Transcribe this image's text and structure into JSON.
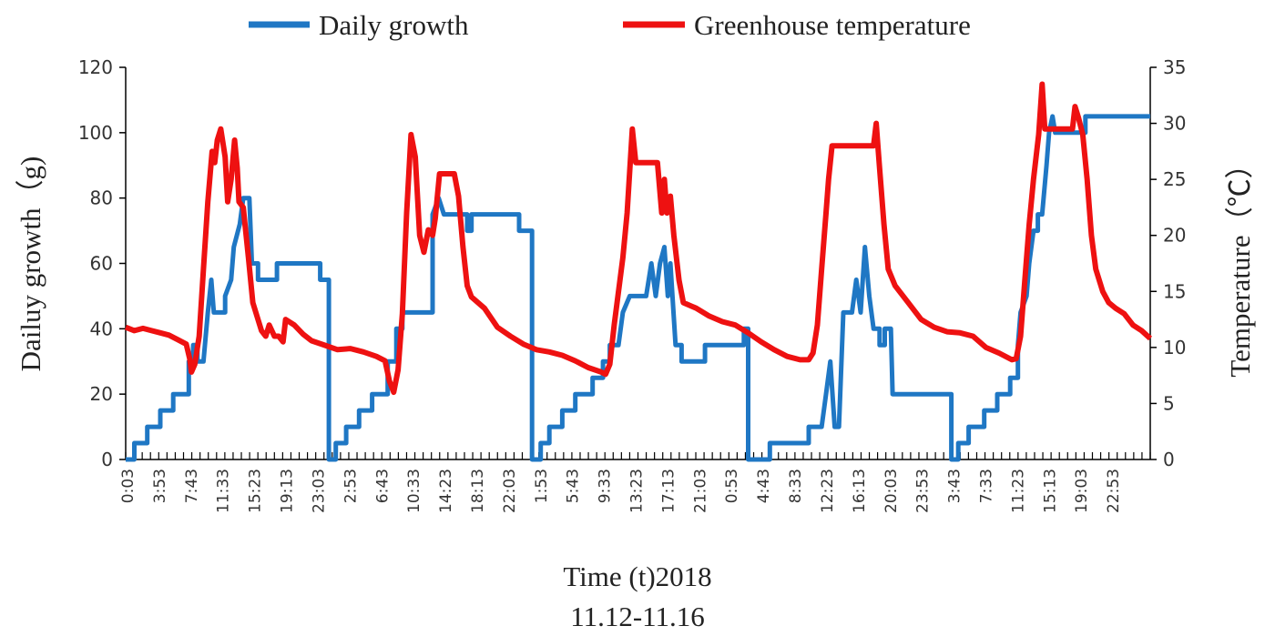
{
  "chart_data": {
    "type": "line",
    "title": "",
    "xlabel": "Time (t)2018",
    "xlabel_line2": "11.12-11.16",
    "ylabel": "Dailuy growth（g)",
    "y2label": "Temperature（℃）",
    "ylim": [
      0,
      120
    ],
    "y2lim": [
      0,
      35
    ],
    "yticks": [
      "0",
      "20",
      "40",
      "60",
      "80",
      "100",
      "120"
    ],
    "y2ticks": [
      "0",
      "5",
      "10",
      "15",
      "20",
      "25",
      "30",
      "35"
    ],
    "x_tick_labels": [
      "0:03",
      "3:53",
      "7:43",
      "11:33",
      "15:23",
      "19:13",
      "23:03",
      "2:53",
      "6:43",
      "10:33",
      "14:23",
      "18:13",
      "22:03",
      "1:53",
      "5:43",
      "9:33",
      "13:23",
      "17:13",
      "21:03",
      "0:53",
      "4:43",
      "8:33",
      "12:23",
      "16:13",
      "20:03",
      "23:53",
      "3:43",
      "7:33",
      "11:23",
      "15:13",
      "19:03",
      "22:53"
    ],
    "x_unit": "hours since 11.12 0:03",
    "x_range": [
      0,
      118.5
    ],
    "legend_position": "top",
    "grid": false,
    "series": [
      {
        "name": "Daily growth",
        "axis": "left",
        "color": "#1f77c4",
        "points": [
          [
            0,
            0
          ],
          [
            1,
            0
          ],
          [
            1,
            5
          ],
          [
            2.5,
            5
          ],
          [
            2.5,
            10
          ],
          [
            4,
            10
          ],
          [
            4,
            15
          ],
          [
            5.5,
            15
          ],
          [
            5.5,
            20
          ],
          [
            7.3,
            20
          ],
          [
            7.3,
            30
          ],
          [
            7.8,
            30
          ],
          [
            7.8,
            35
          ],
          [
            8.3,
            35
          ],
          [
            8.3,
            30
          ],
          [
            9,
            30
          ],
          [
            9.5,
            45
          ],
          [
            9.9,
            55
          ],
          [
            10.2,
            45
          ],
          [
            11.5,
            45
          ],
          [
            11.5,
            50
          ],
          [
            12.2,
            55
          ],
          [
            12.5,
            65
          ],
          [
            13.2,
            72
          ],
          [
            13.6,
            80
          ],
          [
            14.3,
            80
          ],
          [
            14.6,
            60
          ],
          [
            15.3,
            60
          ],
          [
            15.3,
            55
          ],
          [
            17.5,
            55
          ],
          [
            17.5,
            60
          ],
          [
            22.5,
            60
          ],
          [
            22.5,
            55
          ],
          [
            23.5,
            55
          ],
          [
            23.5,
            0
          ],
          [
            24.3,
            0
          ],
          [
            24.3,
            5
          ],
          [
            25.5,
            5
          ],
          [
            25.5,
            10
          ],
          [
            27,
            10
          ],
          [
            27,
            15
          ],
          [
            28.5,
            15
          ],
          [
            28.5,
            20
          ],
          [
            30.3,
            20
          ],
          [
            30.3,
            30
          ],
          [
            31.3,
            30
          ],
          [
            31.3,
            40
          ],
          [
            32,
            40
          ],
          [
            32,
            45
          ],
          [
            35.5,
            45
          ],
          [
            35.5,
            75
          ],
          [
            36.2,
            80
          ],
          [
            36.8,
            75
          ],
          [
            39.5,
            75
          ],
          [
            39.5,
            70
          ],
          [
            40,
            70
          ],
          [
            40,
            75
          ],
          [
            45.5,
            75
          ],
          [
            45.5,
            70
          ],
          [
            47,
            70
          ],
          [
            47,
            0
          ],
          [
            48,
            0
          ],
          [
            48,
            5
          ],
          [
            49,
            5
          ],
          [
            49,
            10
          ],
          [
            50.5,
            10
          ],
          [
            50.5,
            15
          ],
          [
            52,
            15
          ],
          [
            52,
            20
          ],
          [
            54,
            20
          ],
          [
            54,
            25
          ],
          [
            55.2,
            25
          ],
          [
            55.2,
            30
          ],
          [
            56,
            30
          ],
          [
            56,
            35
          ],
          [
            57,
            35
          ],
          [
            57.5,
            45
          ],
          [
            58.3,
            50
          ],
          [
            60.2,
            50
          ],
          [
            60.8,
            60
          ],
          [
            61.3,
            50
          ],
          [
            61.8,
            60
          ],
          [
            62.3,
            65
          ],
          [
            62.7,
            50
          ],
          [
            63,
            60
          ],
          [
            63.6,
            35
          ],
          [
            64.3,
            35
          ],
          [
            64.3,
            30
          ],
          [
            67,
            30
          ],
          [
            67,
            35
          ],
          [
            71.5,
            35
          ],
          [
            71.5,
            40
          ],
          [
            72,
            40
          ],
          [
            72,
            0
          ],
          [
            74.5,
            0
          ],
          [
            74.5,
            5
          ],
          [
            79,
            5
          ],
          [
            79,
            10
          ],
          [
            80.5,
            10
          ],
          [
            81,
            20
          ],
          [
            81.5,
            30
          ],
          [
            82,
            10
          ],
          [
            82.5,
            10
          ],
          [
            83,
            45
          ],
          [
            84,
            45
          ],
          [
            84.5,
            55
          ],
          [
            85,
            45
          ],
          [
            85.5,
            65
          ],
          [
            86,
            50
          ],
          [
            86.5,
            40
          ],
          [
            87.2,
            40
          ],
          [
            87.2,
            35
          ],
          [
            87.8,
            35
          ],
          [
            87.8,
            40
          ],
          [
            88.5,
            40
          ],
          [
            88.7,
            20
          ],
          [
            95.5,
            20
          ],
          [
            95.5,
            0
          ],
          [
            96.3,
            0
          ],
          [
            96.3,
            5
          ],
          [
            97.5,
            5
          ],
          [
            97.5,
            10
          ],
          [
            99.3,
            10
          ],
          [
            99.3,
            15
          ],
          [
            100.8,
            15
          ],
          [
            100.8,
            20
          ],
          [
            102.3,
            20
          ],
          [
            102.3,
            25
          ],
          [
            103.2,
            25
          ],
          [
            103.2,
            35
          ],
          [
            103.5,
            45
          ],
          [
            104.2,
            50
          ],
          [
            104.5,
            60
          ],
          [
            105,
            70
          ],
          [
            105.5,
            70
          ],
          [
            105.5,
            75
          ],
          [
            106,
            75
          ],
          [
            106.5,
            90
          ],
          [
            106.8,
            100
          ],
          [
            107.2,
            105
          ],
          [
            107.5,
            100
          ],
          [
            111,
            100
          ],
          [
            111,
            105
          ],
          [
            118.5,
            105
          ]
        ]
      },
      {
        "name": "Greenhouse temperature",
        "axis": "right",
        "color": "#ee1111",
        "points": [
          [
            0,
            11.8
          ],
          [
            1,
            11.5
          ],
          [
            2,
            11.7
          ],
          [
            3,
            11.5
          ],
          [
            4,
            11.3
          ],
          [
            5,
            11.1
          ],
          [
            6,
            10.7
          ],
          [
            7,
            10.3
          ],
          [
            7.4,
            9
          ],
          [
            7.6,
            7.8
          ],
          [
            8,
            8.5
          ],
          [
            8.5,
            11
          ],
          [
            9,
            17
          ],
          [
            9.5,
            23
          ],
          [
            10,
            27.5
          ],
          [
            10.3,
            26.5
          ],
          [
            10.6,
            28.5
          ],
          [
            11,
            29.5
          ],
          [
            11.5,
            27
          ],
          [
            11.8,
            23
          ],
          [
            12.2,
            25
          ],
          [
            12.6,
            28.5
          ],
          [
            12.9,
            26
          ],
          [
            13.1,
            23
          ],
          [
            13.6,
            22.5
          ],
          [
            14.2,
            18
          ],
          [
            14.7,
            14
          ],
          [
            15.3,
            12.5
          ],
          [
            15.7,
            11.5
          ],
          [
            16.2,
            11
          ],
          [
            16.6,
            12
          ],
          [
            17.2,
            11
          ],
          [
            17.7,
            11
          ],
          [
            18.2,
            10.5
          ],
          [
            18.5,
            12.5
          ],
          [
            19.5,
            12
          ],
          [
            20.5,
            11.2
          ],
          [
            21.5,
            10.6
          ],
          [
            23,
            10.2
          ],
          [
            24.5,
            9.8
          ],
          [
            26,
            9.9
          ],
          [
            27.5,
            9.6
          ],
          [
            29,
            9.2
          ],
          [
            30,
            8.8
          ],
          [
            30.5,
            7
          ],
          [
            31,
            6
          ],
          [
            31.5,
            8
          ],
          [
            32,
            13
          ],
          [
            32.5,
            22
          ],
          [
            33,
            29
          ],
          [
            33.5,
            27
          ],
          [
            34,
            20
          ],
          [
            34.5,
            18.5
          ],
          [
            35,
            20.5
          ],
          [
            35.5,
            20
          ],
          [
            35.8,
            21.5
          ],
          [
            36.3,
            25.5
          ],
          [
            38,
            25.5
          ],
          [
            38.5,
            23.5
          ],
          [
            39,
            19
          ],
          [
            39.5,
            15.5
          ],
          [
            40,
            14.5
          ],
          [
            41.5,
            13.5
          ],
          [
            43,
            11.8
          ],
          [
            44.5,
            11
          ],
          [
            46,
            10.3
          ],
          [
            47.5,
            9.8
          ],
          [
            49,
            9.6
          ],
          [
            50.5,
            9.3
          ],
          [
            52,
            8.8
          ],
          [
            53.5,
            8.2
          ],
          [
            55,
            7.8
          ],
          [
            55.5,
            7.6
          ],
          [
            56,
            8.5
          ],
          [
            56.5,
            12
          ],
          [
            57.5,
            18
          ],
          [
            58,
            22
          ],
          [
            58.6,
            29.5
          ],
          [
            59,
            26.5
          ],
          [
            61.5,
            26.5
          ],
          [
            62,
            22
          ],
          [
            62.3,
            25
          ],
          [
            62.6,
            22
          ],
          [
            63,
            23.5
          ],
          [
            63.4,
            20
          ],
          [
            64,
            16
          ],
          [
            64.5,
            14
          ],
          [
            66,
            13.5
          ],
          [
            67.5,
            12.8
          ],
          [
            69,
            12.3
          ],
          [
            70.5,
            12
          ],
          [
            72,
            11.3
          ],
          [
            73.5,
            10.5
          ],
          [
            75,
            9.8
          ],
          [
            76.5,
            9.2
          ],
          [
            78,
            8.9
          ],
          [
            79,
            8.9
          ],
          [
            79.5,
            9.5
          ],
          [
            80,
            12
          ],
          [
            80.5,
            17
          ],
          [
            81,
            22
          ],
          [
            81.3,
            25
          ],
          [
            81.7,
            28
          ],
          [
            86.5,
            28
          ],
          [
            86.8,
            30
          ],
          [
            87.2,
            26
          ],
          [
            87.7,
            21
          ],
          [
            88.2,
            17
          ],
          [
            89,
            15.5
          ],
          [
            90.5,
            14
          ],
          [
            92,
            12.5
          ],
          [
            93.5,
            11.8
          ],
          [
            95,
            11.4
          ],
          [
            96.5,
            11.3
          ],
          [
            98,
            11
          ],
          [
            99.5,
            10
          ],
          [
            101,
            9.5
          ],
          [
            102.5,
            8.9
          ],
          [
            103,
            9
          ],
          [
            103.5,
            11
          ],
          [
            104,
            16
          ],
          [
            104.5,
            21
          ],
          [
            105,
            25
          ],
          [
            105.6,
            29
          ],
          [
            106,
            33.5
          ],
          [
            106.3,
            29.5
          ],
          [
            109.5,
            29.5
          ],
          [
            109.8,
            31.5
          ],
          [
            110.2,
            30.5
          ],
          [
            110.7,
            29
          ],
          [
            111.2,
            25
          ],
          [
            111.7,
            20
          ],
          [
            112.2,
            17
          ],
          [
            113,
            15
          ],
          [
            113.7,
            14
          ],
          [
            114.5,
            13.5
          ],
          [
            115.5,
            13
          ],
          [
            116.5,
            12
          ],
          [
            117.5,
            11.5
          ],
          [
            118.5,
            10.8
          ]
        ]
      }
    ]
  }
}
